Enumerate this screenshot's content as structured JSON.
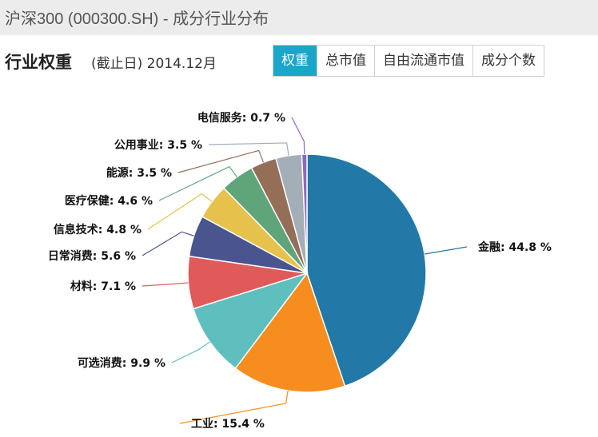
{
  "window": {
    "title": "沪深300 (000300.SH) - 成分行业分布"
  },
  "header": {
    "title": "行业权重",
    "subtitle": "(截止日) 2014.12月"
  },
  "tabs": [
    {
      "label": "权重",
      "active": true
    },
    {
      "label": "总市值",
      "active": false
    },
    {
      "label": "自由流通市值",
      "active": false
    },
    {
      "label": "成分个数",
      "active": false
    }
  ],
  "colors": {
    "accent": "#19a6c9"
  },
  "chart_data": {
    "type": "pie",
    "unit": "%",
    "slices": [
      {
        "name": "金融",
        "value": 44.8,
        "label": "金融: 44.8 %",
        "color": "#2279a7"
      },
      {
        "name": "工业",
        "value": 15.4,
        "label": "工业: 15.4 %",
        "color": "#f78d1e"
      },
      {
        "name": "可选消费",
        "value": 9.9,
        "label": "可选消费: 9.9 %",
        "color": "#5fbfbf"
      },
      {
        "name": "材料",
        "value": 7.1,
        "label": "材料: 7.1 %",
        "color": "#e15a5a"
      },
      {
        "name": "日常消费",
        "value": 5.6,
        "label": "日常消费: 5.6 %",
        "color": "#4a5590"
      },
      {
        "name": "信息技术",
        "value": 4.8,
        "label": "信息技术: 4.8 %",
        "color": "#e6c24c"
      },
      {
        "name": "医疗保健",
        "value": 4.6,
        "label": "医疗保健: 4.6 %",
        "color": "#5fa579"
      },
      {
        "name": "能源",
        "value": 3.5,
        "label": "能源: 3.5 %",
        "color": "#946e57"
      },
      {
        "name": "公用事业",
        "value": 3.5,
        "label": "公用事业: 3.5 %",
        "color": "#a3aeb9"
      },
      {
        "name": "电信服务",
        "value": 0.7,
        "label": "电信服务: 0.7 %",
        "color": "#8e68c4"
      }
    ]
  }
}
